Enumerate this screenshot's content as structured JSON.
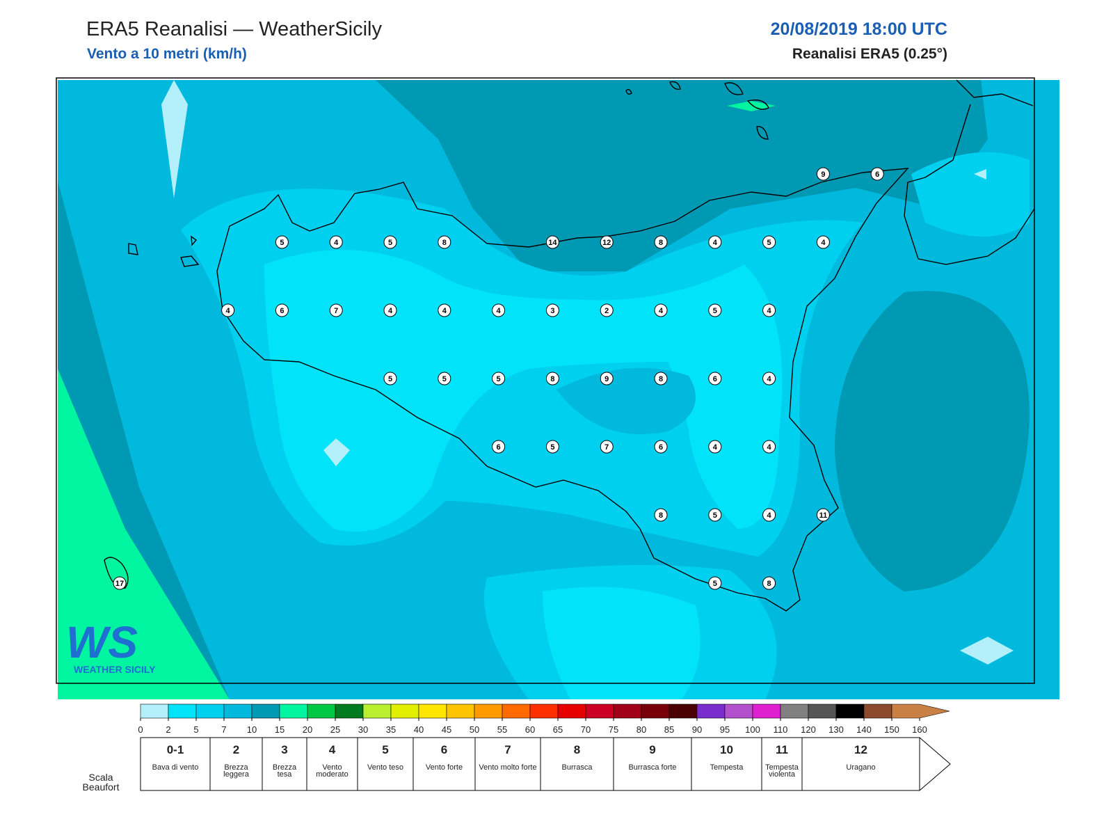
{
  "header": {
    "title": "ERA5 Reanalisi — WeatherSicily",
    "subtitle": "Vento a 10 metri (km/h)",
    "datetime": "20/08/2019 18:00 UTC",
    "source": "Reanalisi ERA5 (0.25°)"
  },
  "map": {
    "stations": [
      [
        null,
        null,
        null,
        null,
        null,
        null,
        null,
        null,
        null,
        null,
        null,
        null,
        null,
        9,
        6
      ],
      [
        null,
        null,
        null,
        5,
        4,
        5,
        8,
        null,
        14,
        12,
        8,
        4,
        5,
        4,
        null
      ],
      [
        null,
        null,
        4,
        6,
        7,
        4,
        4,
        4,
        3,
        2,
        4,
        5,
        4,
        null,
        null
      ],
      [
        null,
        null,
        null,
        null,
        null,
        5,
        5,
        5,
        8,
        9,
        8,
        6,
        4,
        null,
        null
      ],
      [
        null,
        null,
        null,
        null,
        null,
        null,
        null,
        6,
        5,
        7,
        6,
        4,
        4,
        null,
        null
      ],
      [
        null,
        null,
        null,
        null,
        null,
        null,
        null,
        null,
        null,
        null,
        8,
        5,
        4,
        11,
        null
      ],
      [
        17,
        null,
        null,
        null,
        null,
        null,
        null,
        null,
        null,
        null,
        null,
        5,
        8,
        null,
        null
      ]
    ],
    "logo": {
      "mark": "WS",
      "name": "WEATHER SICILY"
    }
  },
  "colorbar": {
    "ticks": [
      0,
      2,
      5,
      7,
      10,
      15,
      20,
      25,
      30,
      35,
      40,
      45,
      50,
      55,
      60,
      65,
      70,
      75,
      80,
      85,
      90,
      95,
      100,
      110,
      120,
      130,
      140,
      150,
      160
    ],
    "colors": [
      "#b3f0fb",
      "#00e3f8",
      "#00d0ef",
      "#00b9dd",
      "#0099b3",
      "#00f5a0",
      "#00c844",
      "#007a1e",
      "#b8f030",
      "#e2f000",
      "#ffe600",
      "#ffc400",
      "#ff9a00",
      "#ff6a00",
      "#ff3000",
      "#e60000",
      "#cc0022",
      "#a00018",
      "#780008",
      "#4a0000",
      "#7a2ccc",
      "#b350cc",
      "#e020d0",
      "#808080",
      "#555555",
      "#000000",
      "#8b4a2b",
      "#c98045"
    ]
  },
  "beaufort": {
    "title": "Scala Beaufort",
    "levels": [
      {
        "force": "0-1",
        "label": "Bava di vento"
      },
      {
        "force": "2",
        "label": "Brezza leggera"
      },
      {
        "force": "3",
        "label": "Brezza tesa"
      },
      {
        "force": "4",
        "label": "Vento moderato"
      },
      {
        "force": "5",
        "label": "Vento teso"
      },
      {
        "force": "6",
        "label": "Vento forte"
      },
      {
        "force": "7",
        "label": "Vento molto forte"
      },
      {
        "force": "8",
        "label": "Burrasca"
      },
      {
        "force": "9",
        "label": "Burrasca forte"
      },
      {
        "force": "10",
        "label": "Tempesta"
      },
      {
        "force": "11",
        "label": "Tempesta violenta"
      },
      {
        "force": "12",
        "label": "Uragano"
      }
    ]
  }
}
